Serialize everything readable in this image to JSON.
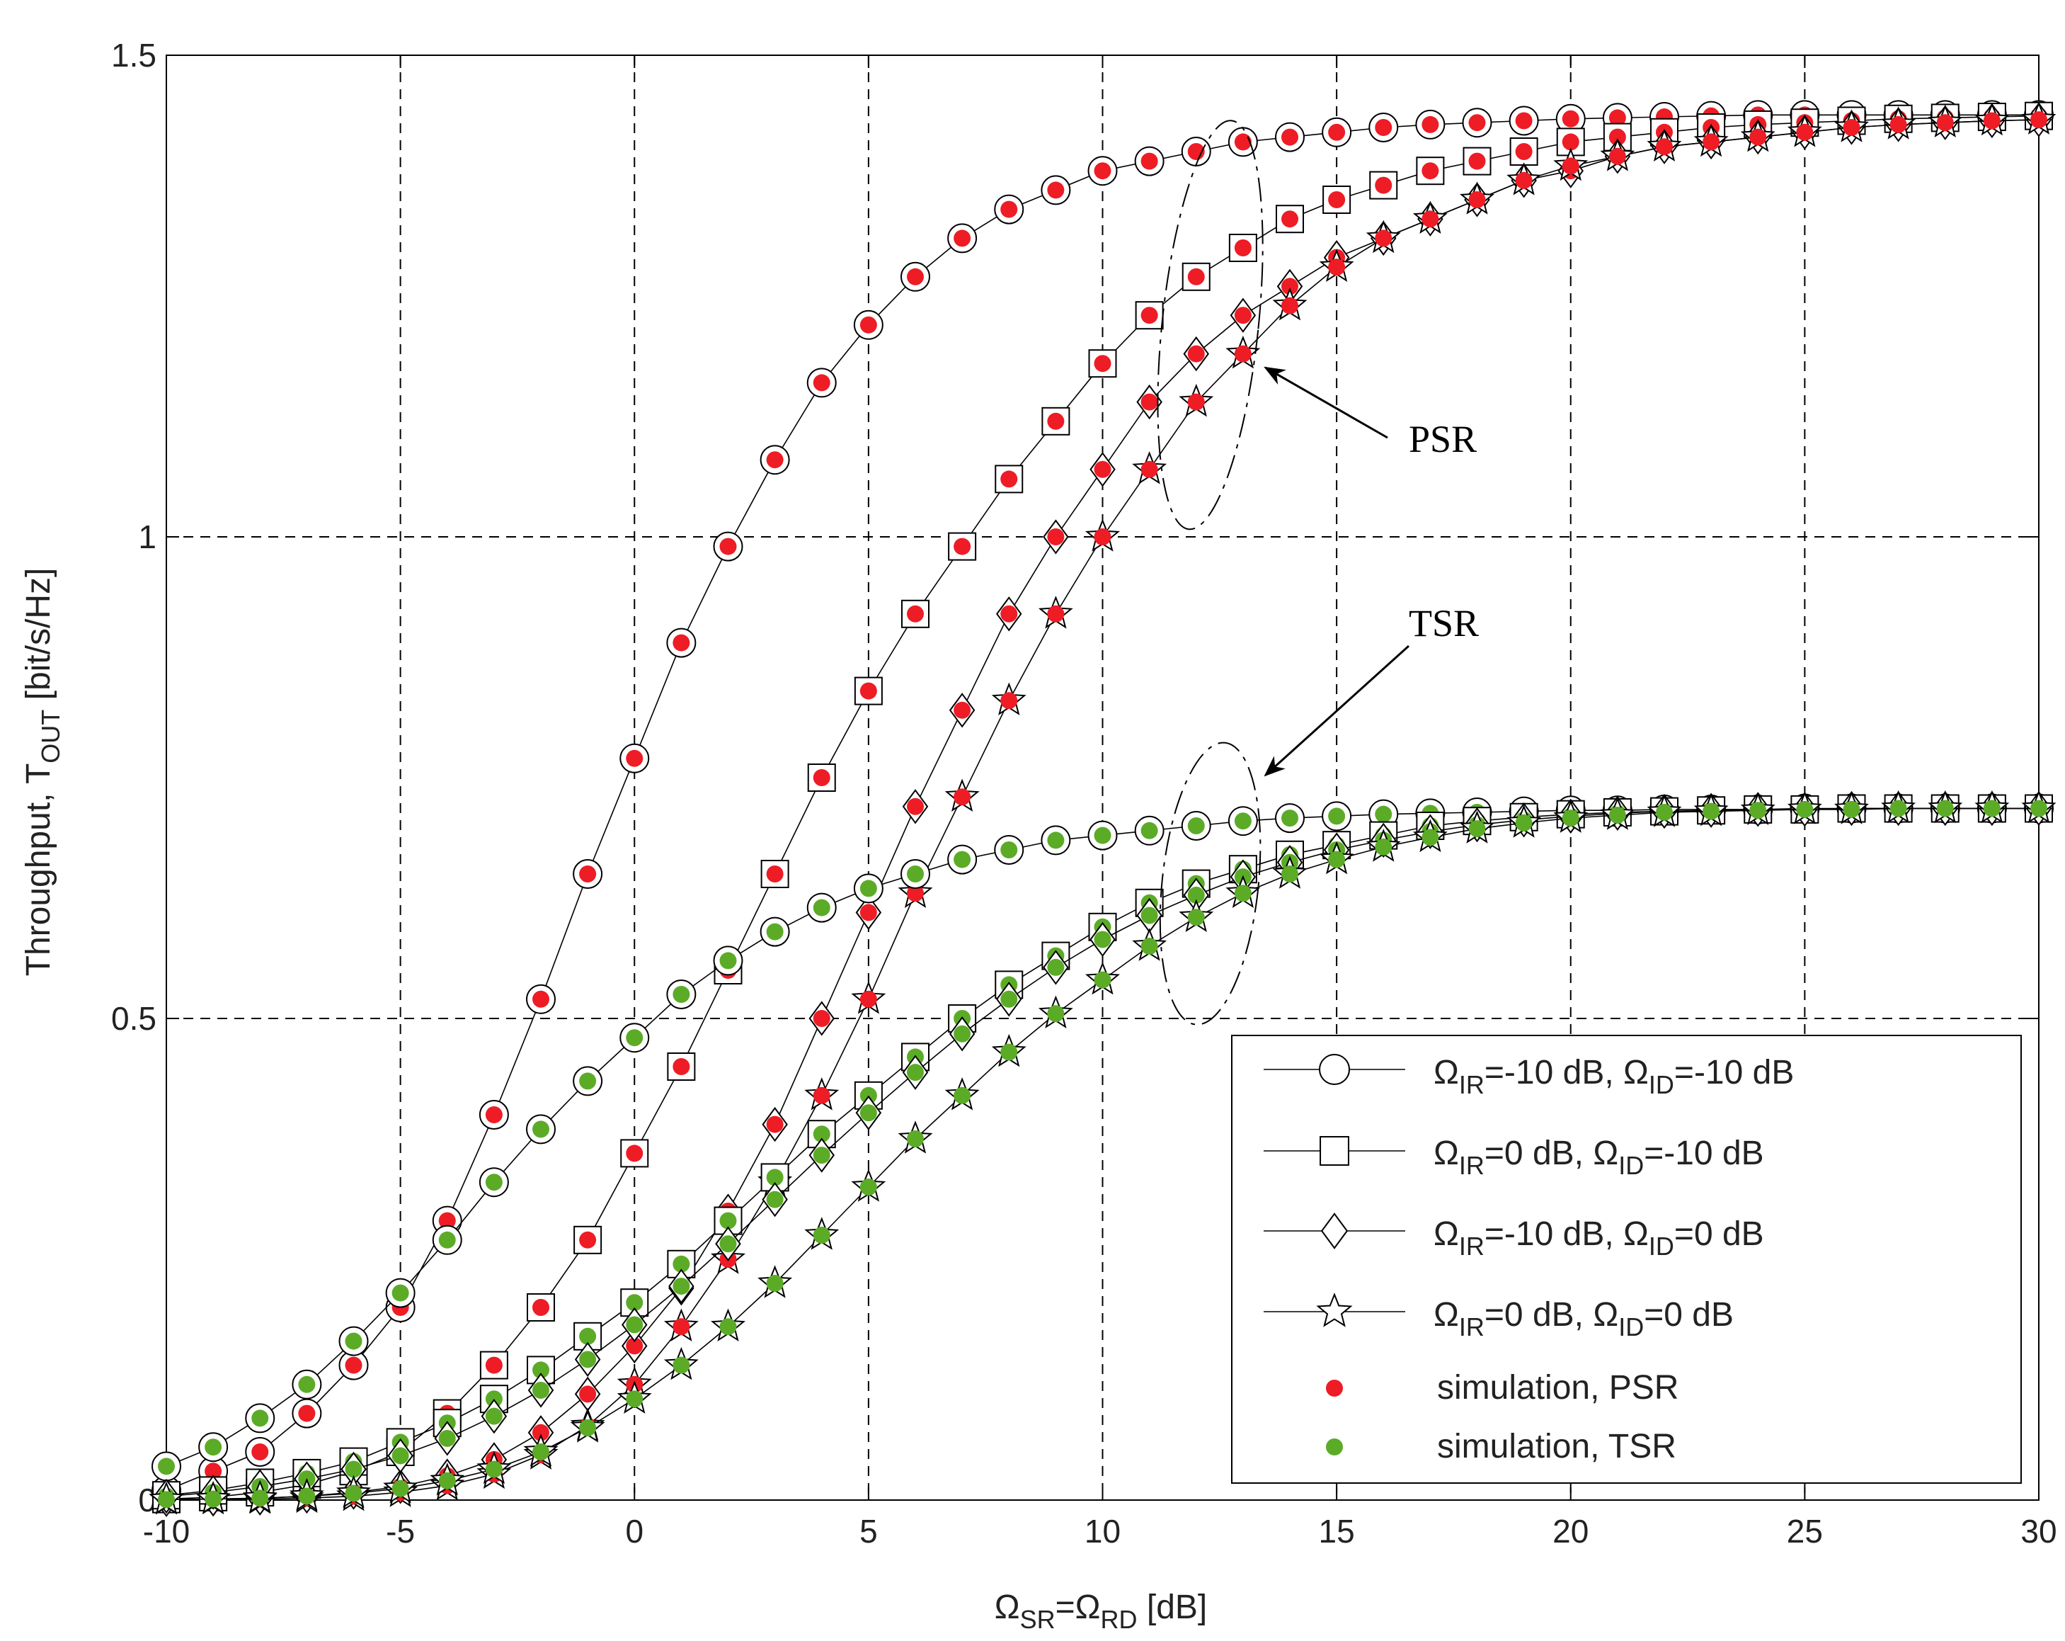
{
  "chart_data": {
    "type": "line",
    "title": "",
    "xlabel": {
      "prefix": "Ω",
      "sub1": "SR",
      "mid": "=Ω",
      "sub2": "RD",
      "suffix": " [dB]"
    },
    "ylabel": {
      "prefix": "Throughput, T",
      "sub": "OUT",
      "suffix": " [bit/s/Hz]"
    },
    "xlim": [
      -10,
      30
    ],
    "ylim": [
      0,
      1.5
    ],
    "xticks": [
      -10,
      -5,
      0,
      5,
      10,
      15,
      20,
      25,
      30
    ],
    "xtick_labels": [
      "-10",
      "-5",
      "0",
      "5",
      "10",
      "15",
      "20",
      "25",
      "30"
    ],
    "yticks": [
      0,
      0.5,
      1,
      1.5
    ],
    "ytick_labels": [
      "0",
      "0.5",
      "1",
      "1.5"
    ],
    "grid": true,
    "x": [
      -10,
      -9,
      -8,
      -7,
      -6,
      -5,
      -4,
      -3,
      -2,
      -1,
      0,
      1,
      2,
      3,
      4,
      5,
      6,
      7,
      8,
      9,
      10,
      11,
      12,
      13,
      14,
      15,
      16,
      17,
      18,
      19,
      20,
      21,
      22,
      23,
      24,
      25,
      26,
      27,
      28,
      29,
      30
    ],
    "series": [
      {
        "name": "PSR, ΩIR=-10 dB, ΩID=-10 dB",
        "group": "PSR",
        "marker": "circle",
        "values": [
          0.01,
          0.03,
          0.05,
          0.09,
          0.14,
          0.2,
          0.29,
          0.4,
          0.52,
          0.65,
          0.77,
          0.89,
          0.99,
          1.08,
          1.16,
          1.22,
          1.27,
          1.31,
          1.34,
          1.36,
          1.38,
          1.39,
          1.4,
          1.41,
          1.415,
          1.42,
          1.425,
          1.428,
          1.43,
          1.432,
          1.434,
          1.435,
          1.436,
          1.437,
          1.438,
          1.438,
          1.438,
          1.438,
          1.438,
          1.438,
          1.438
        ]
      },
      {
        "name": "PSR, ΩIR=0 dB, ΩID=-10 dB",
        "group": "PSR",
        "marker": "square",
        "values": [
          0.001,
          0.003,
          0.008,
          0.016,
          0.03,
          0.05,
          0.09,
          0.14,
          0.2,
          0.27,
          0.36,
          0.45,
          0.55,
          0.65,
          0.75,
          0.84,
          0.92,
          0.99,
          1.06,
          1.12,
          1.18,
          1.23,
          1.27,
          1.3,
          1.33,
          1.35,
          1.365,
          1.38,
          1.39,
          1.4,
          1.41,
          1.415,
          1.42,
          1.425,
          1.428,
          1.43,
          1.432,
          1.434,
          1.435,
          1.436,
          1.437
        ]
      },
      {
        "name": "PSR, ΩIR=-10 dB, ΩID=0 dB",
        "group": "PSR",
        "marker": "diamond",
        "values": [
          0.0005,
          0.001,
          0.002,
          0.004,
          0.008,
          0.014,
          0.025,
          0.042,
          0.07,
          0.11,
          0.16,
          0.22,
          0.3,
          0.39,
          0.5,
          0.61,
          0.72,
          0.82,
          0.92,
          1.0,
          1.07,
          1.14,
          1.19,
          1.23,
          1.26,
          1.29,
          1.31,
          1.33,
          1.35,
          1.37,
          1.38,
          1.395,
          1.405,
          1.41,
          1.415,
          1.42,
          1.425,
          1.428,
          1.43,
          1.432,
          1.433
        ]
      },
      {
        "name": "PSR, ΩIR=0 dB, ΩID=0 dB",
        "group": "PSR",
        "marker": "star",
        "values": [
          0.0002,
          0.0005,
          0.001,
          0.002,
          0.004,
          0.008,
          0.015,
          0.027,
          0.047,
          0.077,
          0.12,
          0.18,
          0.25,
          0.33,
          0.42,
          0.52,
          0.63,
          0.73,
          0.83,
          0.92,
          1.0,
          1.07,
          1.14,
          1.19,
          1.24,
          1.28,
          1.31,
          1.33,
          1.35,
          1.37,
          1.385,
          1.395,
          1.405,
          1.41,
          1.415,
          1.42,
          1.425,
          1.428,
          1.43,
          1.432,
          1.433
        ]
      },
      {
        "name": "TSR, ΩIR=-10 dB, ΩID=-10 dB",
        "group": "TSR",
        "marker": "circle",
        "values": [
          0.035,
          0.055,
          0.085,
          0.12,
          0.165,
          0.215,
          0.27,
          0.33,
          0.385,
          0.435,
          0.48,
          0.525,
          0.56,
          0.59,
          0.615,
          0.635,
          0.65,
          0.665,
          0.675,
          0.685,
          0.69,
          0.695,
          0.7,
          0.705,
          0.708,
          0.71,
          0.712,
          0.713,
          0.714,
          0.715,
          0.716,
          0.716,
          0.717,
          0.717,
          0.717,
          0.718,
          0.718,
          0.718,
          0.718,
          0.718,
          0.718
        ]
      },
      {
        "name": "TSR, ΩIR=0 dB, ΩID=-10 dB",
        "group": "TSR",
        "marker": "square",
        "values": [
          0.005,
          0.01,
          0.018,
          0.028,
          0.04,
          0.06,
          0.08,
          0.105,
          0.135,
          0.17,
          0.205,
          0.245,
          0.29,
          0.335,
          0.38,
          0.42,
          0.46,
          0.5,
          0.535,
          0.565,
          0.595,
          0.62,
          0.64,
          0.655,
          0.67,
          0.68,
          0.69,
          0.7,
          0.705,
          0.709,
          0.712,
          0.714,
          0.715,
          0.716,
          0.717,
          0.717,
          0.718,
          0.718,
          0.718,
          0.718,
          0.718
        ]
      },
      {
        "name": "TSR, ΩIR=-10 dB, ΩID=0 dB",
        "group": "TSR",
        "marker": "diamond",
        "values": [
          0.004,
          0.008,
          0.014,
          0.022,
          0.032,
          0.046,
          0.064,
          0.087,
          0.114,
          0.146,
          0.182,
          0.222,
          0.266,
          0.312,
          0.358,
          0.402,
          0.444,
          0.484,
          0.52,
          0.553,
          0.582,
          0.607,
          0.628,
          0.647,
          0.662,
          0.675,
          0.685,
          0.694,
          0.701,
          0.706,
          0.71,
          0.713,
          0.715,
          0.716,
          0.717,
          0.717,
          0.718,
          0.718,
          0.718,
          0.718,
          0.718
        ]
      },
      {
        "name": "TSR, ΩIR=0 dB, ΩID=0 dB",
        "group": "TSR",
        "marker": "star",
        "values": [
          0.0005,
          0.001,
          0.002,
          0.004,
          0.007,
          0.012,
          0.02,
          0.032,
          0.05,
          0.075,
          0.105,
          0.14,
          0.18,
          0.225,
          0.275,
          0.325,
          0.375,
          0.42,
          0.465,
          0.505,
          0.54,
          0.575,
          0.605,
          0.63,
          0.65,
          0.665,
          0.678,
          0.688,
          0.697,
          0.703,
          0.708,
          0.711,
          0.714,
          0.715,
          0.716,
          0.717,
          0.717,
          0.718,
          0.718,
          0.718,
          0.718
        ]
      }
    ],
    "annotations": [
      {
        "text": "PSR",
        "arrow_to": [
          13.3,
          1.18
        ]
      },
      {
        "text": "TSR",
        "arrow_to": [
          13.3,
          0.76
        ]
      }
    ],
    "legend": {
      "position": "bottom-right",
      "entries": [
        {
          "marker": "circle",
          "label": {
            "a": "Ω",
            "s1": "IR",
            "b": "=-10 dB, Ω",
            "s2": "ID",
            "c": "=-10 dB"
          }
        },
        {
          "marker": "square",
          "label": {
            "a": "Ω",
            "s1": "IR",
            "b": "=0 dB, Ω",
            "s2": "ID",
            "c": "=-10 dB"
          }
        },
        {
          "marker": "diamond",
          "label": {
            "a": "Ω",
            "s1": "IR",
            "b": "=-10 dB, Ω",
            "s2": "ID",
            "c": "=0 dB"
          }
        },
        {
          "marker": "star",
          "label": {
            "a": "Ω",
            "s1": "IR",
            "b": "=0 dB, Ω",
            "s2": "ID",
            "c": "=0 dB"
          }
        },
        {
          "marker": "dot-red",
          "label": {
            "text": "simulation, PSR"
          }
        },
        {
          "marker": "dot-green",
          "label": {
            "text": "simulation, TSR"
          }
        }
      ]
    },
    "colors": {
      "psr_sim": "#ee1c25",
      "tsr_sim": "#5bab27",
      "line": "#000000",
      "grid": "#000000"
    }
  }
}
